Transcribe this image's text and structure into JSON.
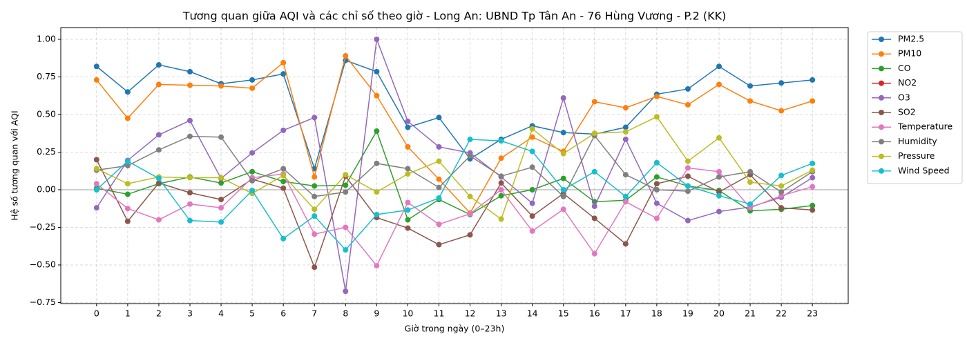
{
  "chart_data": {
    "type": "line",
    "title": "Tương quan giữa AQI và các chỉ số theo giờ - Long An: UBND Tp Tân An - 76 Hùng Vương - P.2 (KK)",
    "xlabel": "Giờ trong ngày (0–23h)",
    "ylabel": "Hệ số tương quan với AQI",
    "x": [
      0,
      1,
      2,
      3,
      4,
      5,
      6,
      7,
      8,
      9,
      10,
      11,
      12,
      13,
      14,
      15,
      16,
      17,
      18,
      19,
      20,
      21,
      22,
      23
    ],
    "xlim": [
      -1.15,
      24.15
    ],
    "xticks": [
      0,
      1,
      2,
      3,
      4,
      5,
      6,
      7,
      8,
      9,
      10,
      11,
      12,
      13,
      14,
      15,
      16,
      17,
      18,
      19,
      20,
      21,
      22,
      23
    ],
    "ylim": [
      -0.757,
      1.078
    ],
    "yticks": [
      {
        "value": -0.75,
        "label": "−0.75"
      },
      {
        "value": -0.5,
        "label": "−0.50"
      },
      {
        "value": -0.25,
        "label": "−0.25"
      },
      {
        "value": 0,
        "label": "0.00"
      },
      {
        "value": 0.25,
        "label": "0.25"
      },
      {
        "value": 0.5,
        "label": "0.50"
      },
      {
        "value": 0.75,
        "label": "0.75"
      },
      {
        "value": 1,
        "label": "1.00"
      }
    ],
    "grid": true,
    "reference_line": 0,
    "legend": "outside upper right",
    "series": [
      {
        "name": "PM2.5",
        "color": "#1f77b4",
        "values": [
          0.82,
          0.65,
          0.83,
          0.785,
          0.705,
          0.73,
          0.77,
          0.14,
          0.86,
          0.785,
          0.415,
          0.48,
          0.205,
          0.335,
          0.425,
          0.38,
          0.37,
          0.415,
          0.635,
          0.67,
          0.82,
          0.69,
          0.71,
          0.73
        ]
      },
      {
        "name": "PM10",
        "color": "#ff7f0e",
        "values": [
          0.73,
          0.475,
          0.7,
          0.695,
          0.69,
          0.675,
          0.845,
          0.085,
          0.89,
          0.625,
          0.285,
          0.07,
          -0.155,
          0.21,
          0.35,
          0.255,
          0.585,
          0.545,
          0.62,
          0.565,
          0.7,
          0.59,
          0.525,
          0.59
        ]
      },
      {
        "name": "CO",
        "color": "#2ca02c",
        "values": [
          0.01,
          -0.03,
          0.04,
          0.085,
          0.045,
          0.12,
          0.055,
          0.025,
          0.03,
          0.39,
          -0.2,
          -0.065,
          -0.165,
          -0.04,
          0.0,
          0.075,
          -0.08,
          -0.07,
          0.085,
          0.025,
          -0.005,
          -0.14,
          -0.13,
          -0.105
        ]
      },
      {
        "name": "NO2",
        "color": "#d62728",
        "values": [
          null,
          null,
          null,
          null,
          null,
          null,
          null,
          null,
          null,
          null,
          null,
          null,
          null,
          null,
          null,
          null,
          null,
          null,
          null,
          null,
          null,
          null,
          null,
          null
        ]
      },
      {
        "name": "O3",
        "color": "#9467bd",
        "values": [
          -0.12,
          0.195,
          0.365,
          0.46,
          0.075,
          0.245,
          0.395,
          0.48,
          -0.675,
          1.0,
          0.455,
          0.285,
          0.245,
          0.085,
          -0.09,
          0.61,
          -0.11,
          0.335,
          -0.09,
          -0.205,
          -0.145,
          -0.115,
          -0.05,
          0.08
        ]
      },
      {
        "name": "SO2",
        "color": "#8c564b",
        "values": [
          0.2,
          -0.21,
          0.045,
          -0.02,
          -0.065,
          0.07,
          0.01,
          -0.515,
          0.09,
          -0.185,
          -0.255,
          -0.365,
          -0.3,
          0.045,
          -0.175,
          -0.025,
          -0.19,
          -0.36,
          0.04,
          0.09,
          -0.015,
          0.1,
          -0.12,
          -0.135
        ]
      },
      {
        "name": "Temperature",
        "color": "#e377c2",
        "values": [
          0.04,
          -0.125,
          -0.2,
          -0.095,
          -0.12,
          0.08,
          0.105,
          -0.295,
          -0.25,
          -0.505,
          -0.085,
          -0.23,
          -0.16,
          0.0,
          -0.275,
          -0.13,
          -0.425,
          -0.08,
          -0.19,
          0.145,
          0.12,
          -0.12,
          -0.04,
          0.02
        ]
      },
      {
        "name": "Humidity",
        "color": "#7f7f7f",
        "values": [
          0.13,
          0.16,
          0.265,
          0.355,
          0.35,
          0.06,
          0.14,
          -0.045,
          -0.015,
          0.175,
          0.14,
          0.015,
          0.225,
          0.09,
          0.15,
          -0.045,
          0.36,
          0.1,
          0.0,
          -0.01,
          0.085,
          0.12,
          -0.015,
          0.12
        ]
      },
      {
        "name": "Pressure",
        "color": "#bcbd22",
        "values": [
          0.14,
          0.04,
          0.085,
          0.08,
          0.08,
          -0.025,
          0.095,
          -0.13,
          0.1,
          -0.015,
          0.105,
          0.19,
          -0.045,
          -0.195,
          0.405,
          0.24,
          0.375,
          0.385,
          0.485,
          0.19,
          0.345,
          0.05,
          0.025,
          0.13
        ]
      },
      {
        "name": "Wind Speed",
        "color": "#17becf",
        "values": [
          0.0,
          0.19,
          0.075,
          -0.205,
          -0.215,
          -0.005,
          -0.325,
          -0.175,
          -0.4,
          -0.165,
          -0.135,
          -0.055,
          0.335,
          0.325,
          0.255,
          0.0,
          0.12,
          -0.045,
          0.18,
          0.025,
          -0.04,
          -0.095,
          0.095,
          0.175
        ]
      }
    ]
  }
}
